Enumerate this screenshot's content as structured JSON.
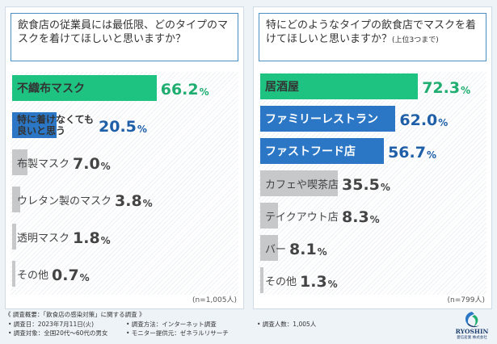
{
  "colors": {
    "green": "#1fc381",
    "blue": "#2b77c6",
    "gray": "#c6c8ca",
    "green_text": "#1fae70",
    "blue_text": "#1e5fa8",
    "gray_text": "#444444",
    "question_border": "#4a90c4"
  },
  "chart_data": [
    {
      "type": "bar",
      "orientation": "horizontal",
      "title": "飲食店の従業員には最低限、どのタイプのマスクを着けてほしいと思いますか？",
      "title_note": "",
      "sample": "(n=1,005人)",
      "xlim": [
        0,
        100
      ],
      "unit": "%",
      "grid": false,
      "bars": [
        {
          "label": "不織布マスク",
          "value": 66.2,
          "value_text": "66.2",
          "color": "green",
          "label_style": "dark-bold"
        },
        {
          "label": "特に着けなくても良いと思う",
          "label_lines": [
            "特に着けなくても",
            "良いと思う"
          ],
          "value": 20.5,
          "value_text": "20.5",
          "color": "blue",
          "label_style": "dark-bold"
        },
        {
          "label": "布製マスク",
          "value": 7.0,
          "value_text": "7.0",
          "color": "gray",
          "label_style": "plain"
        },
        {
          "label": "ウレタン製のマスク",
          "value": 3.8,
          "value_text": "3.8",
          "color": "gray",
          "label_style": "plain"
        },
        {
          "label": "透明マスク",
          "value": 1.8,
          "value_text": "1.8",
          "color": "gray",
          "label_style": "plain"
        },
        {
          "label": "その他",
          "value": 0.7,
          "value_text": "0.7",
          "color": "gray",
          "label_style": "plain"
        }
      ]
    },
    {
      "type": "bar",
      "orientation": "horizontal",
      "title": "特にどのようなタイプの飲食店でマスクを着けてほしいと思いますか？",
      "title_note": "(上位3つまで)",
      "sample": "(n=799人)",
      "xlim": [
        0,
        100
      ],
      "unit": "%",
      "grid": false,
      "bars": [
        {
          "label": "居酒屋",
          "value": 72.3,
          "value_text": "72.3",
          "color": "green",
          "label_style": "dark-bold"
        },
        {
          "label": "ファミリーレストラン",
          "value": 62.0,
          "value_text": "62.0",
          "color": "blue",
          "label_style": "light-bold"
        },
        {
          "label": "ファストフード店",
          "value": 56.7,
          "value_text": "56.7",
          "color": "blue",
          "label_style": "light-bold"
        },
        {
          "label": "カフェや喫茶店",
          "value": 35.5,
          "value_text": "35.5",
          "color": "gray",
          "label_style": "plain"
        },
        {
          "label": "テイクアウト店",
          "value": 8.3,
          "value_text": "8.3",
          "color": "gray",
          "label_style": "plain"
        },
        {
          "label": "バー",
          "value": 8.1,
          "value_text": "8.1",
          "color": "gray",
          "label_style": "plain"
        },
        {
          "label": "その他",
          "value": 1.3,
          "value_text": "1.3",
          "color": "gray",
          "label_style": "plain"
        }
      ]
    }
  ],
  "footer": {
    "title": "《 調査概要：「飲食店の感染対策」に関する調査 》",
    "items": [
      "• 調査日：2023年7月11日(火)",
      "• 調査方法：インターネット調査",
      "• 調査人数：1,005人",
      "• 調査対象：全国20代～60代の男女",
      "• モニター提供元：ゼネラルリサーチ"
    ]
  },
  "logo": {
    "name": "RYOSHIN",
    "sub": "菱信産業 株式会社",
    "icon": "ryoshin-swoosh-logo"
  }
}
